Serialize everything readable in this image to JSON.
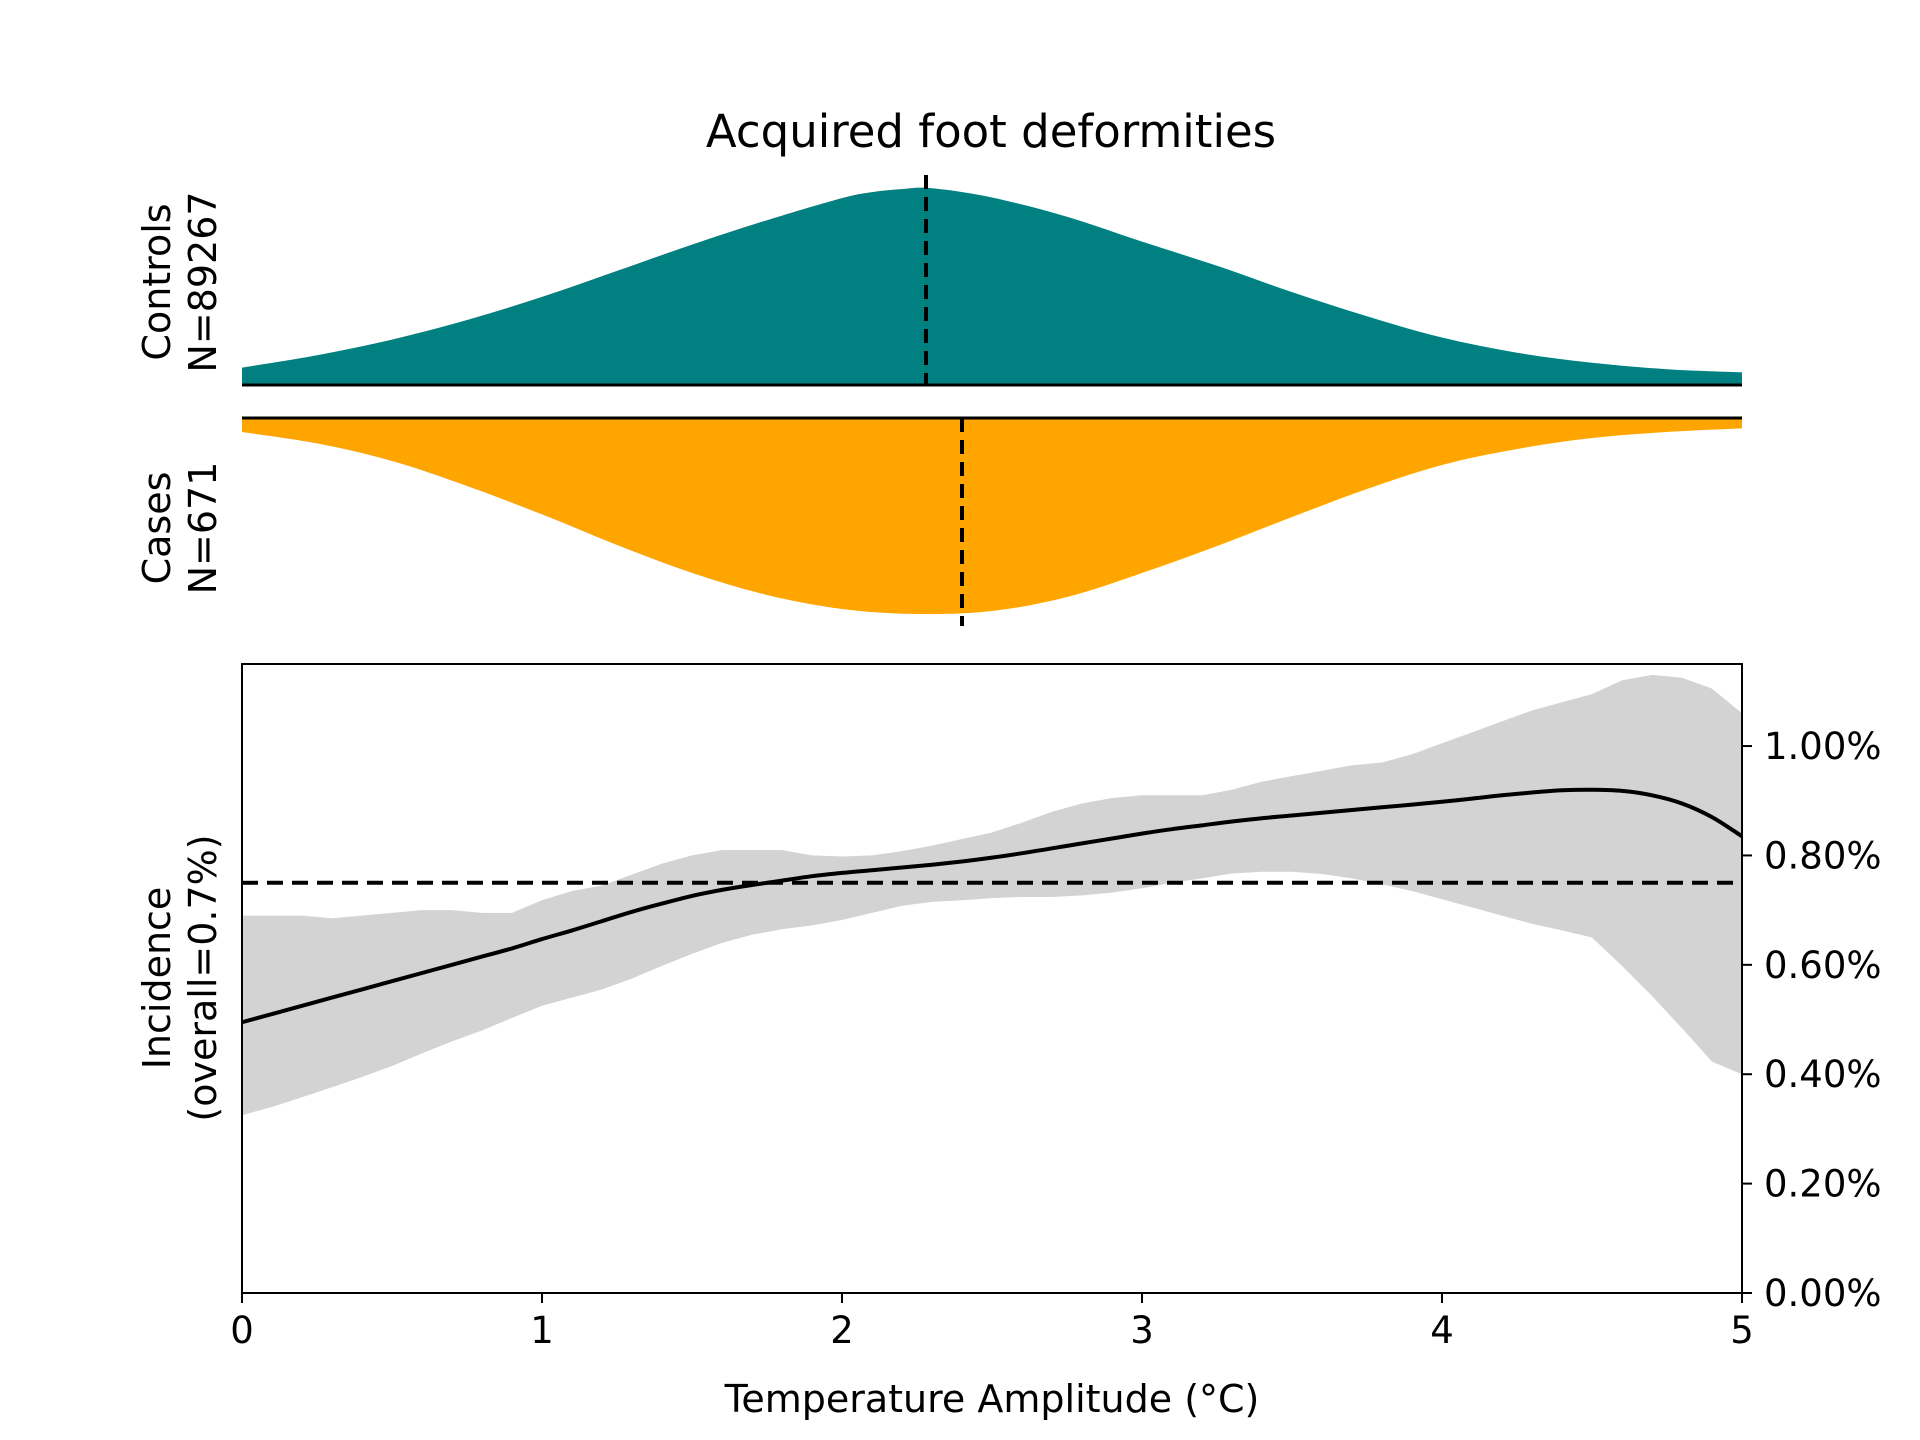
{
  "chart_data": {
    "type": "area",
    "title": "Acquired foot deformities",
    "xlabel": "Temperature Amplitude (°C)",
    "xlim": [
      0,
      5
    ],
    "x_ticks": [
      0,
      1,
      2,
      3,
      4,
      5
    ],
    "x_tick_labels": [
      "0",
      "1",
      "2",
      "3",
      "4",
      "5"
    ],
    "controls": {
      "label_line1": "Controls",
      "label_line2": "N=89267",
      "color": "#008080",
      "median": 2.28,
      "x": [
        0,
        0.25,
        0.5,
        0.75,
        1.0,
        1.25,
        1.5,
        1.75,
        2.0,
        2.1,
        2.2,
        2.3,
        2.5,
        2.75,
        3.0,
        3.25,
        3.5,
        3.75,
        4.0,
        4.25,
        4.5,
        4.75,
        5.0
      ],
      "density": [
        0.086,
        0.147,
        0.225,
        0.322,
        0.436,
        0.565,
        0.695,
        0.816,
        0.925,
        0.955,
        0.97,
        0.974,
        0.928,
        0.833,
        0.71,
        0.59,
        0.46,
        0.34,
        0.235,
        0.16,
        0.11,
        0.078,
        0.063
      ]
    },
    "cases": {
      "label_line1": "Cases",
      "label_line2": "N=671",
      "color": "#FFA500",
      "median": 2.4,
      "x": [
        0,
        0.25,
        0.5,
        0.75,
        1.0,
        1.25,
        1.5,
        1.75,
        2.0,
        2.25,
        2.5,
        2.75,
        3.0,
        3.25,
        3.5,
        3.75,
        4.0,
        4.25,
        4.5,
        4.75,
        5.0
      ],
      "density": [
        0.07,
        0.127,
        0.215,
        0.34,
        0.482,
        0.635,
        0.775,
        0.885,
        0.955,
        0.98,
        0.965,
        0.895,
        0.775,
        0.64,
        0.495,
        0.355,
        0.235,
        0.155,
        0.1,
        0.07,
        0.052
      ]
    },
    "incidence": {
      "ylabel_line1": "Incidence",
      "ylabel_line2": "(overall=0.7%)",
      "overall": 0.75,
      "ylim": [
        0,
        1.15
      ],
      "y_ticks": [
        0,
        0.2,
        0.4,
        0.6,
        0.8,
        1.0
      ],
      "y_tick_labels": [
        "0.00%",
        "0.20%",
        "0.40%",
        "0.60%",
        "0.80%",
        "1.00%"
      ],
      "band_color": "#d3d3d3",
      "line_color": "#000000",
      "x": [
        0,
        0.1,
        0.2,
        0.3,
        0.4,
        0.5,
        0.6,
        0.7,
        0.8,
        0.9,
        1.0,
        1.1,
        1.2,
        1.3,
        1.4,
        1.5,
        1.6,
        1.7,
        1.8,
        1.9,
        2.0,
        2.1,
        2.2,
        2.3,
        2.4,
        2.5,
        2.6,
        2.7,
        2.8,
        2.9,
        3.0,
        3.1,
        3.2,
        3.3,
        3.4,
        3.5,
        3.6,
        3.7,
        3.8,
        3.9,
        4.0,
        4.1,
        4.2,
        4.3,
        4.4,
        4.5,
        4.6,
        4.7,
        4.8,
        4.9,
        5.0
      ],
      "rate": [
        0.495,
        0.51,
        0.525,
        0.54,
        0.555,
        0.57,
        0.585,
        0.6,
        0.615,
        0.63,
        0.647,
        0.663,
        0.68,
        0.697,
        0.712,
        0.726,
        0.737,
        0.746,
        0.754,
        0.762,
        0.768,
        0.773,
        0.778,
        0.783,
        0.789,
        0.796,
        0.804,
        0.813,
        0.822,
        0.831,
        0.84,
        0.848,
        0.855,
        0.862,
        0.868,
        0.873,
        0.878,
        0.883,
        0.888,
        0.893,
        0.898,
        0.904,
        0.91,
        0.915,
        0.919,
        0.92,
        0.918,
        0.91,
        0.895,
        0.87,
        0.835
      ],
      "lower": [
        0.325,
        0.34,
        0.358,
        0.376,
        0.395,
        0.415,
        0.438,
        0.46,
        0.48,
        0.503,
        0.525,
        0.54,
        0.555,
        0.575,
        0.598,
        0.62,
        0.64,
        0.655,
        0.665,
        0.672,
        0.682,
        0.695,
        0.708,
        0.715,
        0.718,
        0.722,
        0.724,
        0.724,
        0.727,
        0.732,
        0.74,
        0.75,
        0.758,
        0.767,
        0.77,
        0.77,
        0.766,
        0.758,
        0.747,
        0.735,
        0.72,
        0.705,
        0.69,
        0.675,
        0.663,
        0.65,
        0.598,
        0.543,
        0.484,
        0.423,
        0.4
      ],
      "upper": [
        0.69,
        0.69,
        0.69,
        0.685,
        0.69,
        0.695,
        0.7,
        0.7,
        0.695,
        0.695,
        0.718,
        0.735,
        0.745,
        0.765,
        0.785,
        0.8,
        0.81,
        0.81,
        0.81,
        0.8,
        0.798,
        0.8,
        0.808,
        0.818,
        0.83,
        0.842,
        0.86,
        0.88,
        0.895,
        0.905,
        0.91,
        0.91,
        0.91,
        0.92,
        0.935,
        0.945,
        0.955,
        0.965,
        0.97,
        0.985,
        1.005,
        1.025,
        1.045,
        1.065,
        1.08,
        1.095,
        1.12,
        1.13,
        1.125,
        1.105,
        1.06
      ]
    }
  }
}
